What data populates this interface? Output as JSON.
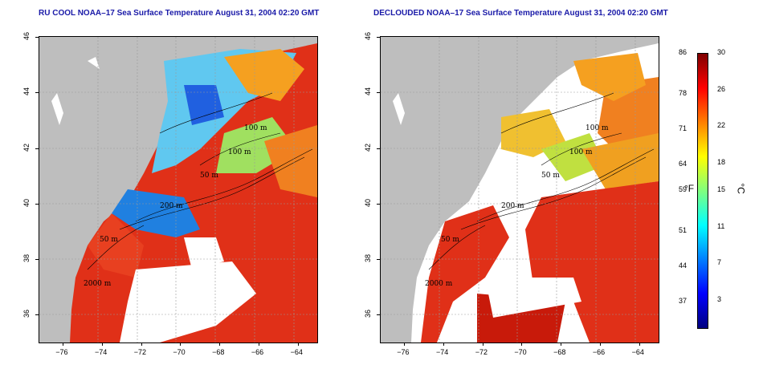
{
  "titles": {
    "left": "RU COOL NOAA–17 Sea Surface Temperature August 31, 2004 02:20 GMT",
    "right": "DECLOUDED NOAA–17 Sea Surface Temperature August 31, 2004 02:20 GMT"
  },
  "axes": {
    "x_ticks": [
      "−76",
      "−74",
      "−72",
      "−70",
      "−68",
      "−66",
      "−64"
    ],
    "x_values": [
      -76,
      -74,
      -72,
      -70,
      -68,
      -66,
      -64
    ],
    "x_range": [
      -77.2,
      -63.0
    ],
    "y_ticks": [
      "36",
      "38",
      "40",
      "42",
      "44",
      "46"
    ],
    "y_values": [
      36,
      38,
      40,
      42,
      44,
      46
    ],
    "y_range": [
      35.0,
      46.0
    ]
  },
  "contour_labels": {
    "left": [
      "100 m",
      "100 m",
      "50 m",
      "200 m",
      "50 m",
      "2000 m"
    ],
    "right": [
      "100 m",
      "100 m",
      "50 m",
      "200 m",
      "50 m",
      "2000 m"
    ]
  },
  "colorbar": {
    "fahrenheit_ticks": [
      "86",
      "78",
      "71",
      "64",
      "59",
      "51",
      "44",
      "37"
    ],
    "fahrenheit_values": [
      86,
      78,
      71,
      64,
      59,
      51,
      44,
      37
    ],
    "celsius_ticks": [
      "30",
      "26",
      "22",
      "18",
      "15",
      "11",
      "7",
      "3"
    ],
    "celsius_values": [
      30,
      26,
      22,
      18,
      15,
      11,
      7,
      3
    ],
    "range_c": [
      0,
      30
    ],
    "unit_f": "°F",
    "unit_c": "°C",
    "colors": [
      "#00007f",
      "#0000ff",
      "#007fff",
      "#00ffff",
      "#7fff7f",
      "#ffff00",
      "#ff7f00",
      "#ff0000",
      "#7f0000"
    ]
  },
  "map_colors": {
    "land": "#bebebe",
    "cloud": "#ffffff",
    "warm": "#e52a10",
    "hot": "#c81a0a",
    "mid": "#f5a020",
    "cool": "#60c8f0",
    "cold": "#2060e0",
    "green": "#a0e060",
    "yellow": "#f0e030"
  }
}
